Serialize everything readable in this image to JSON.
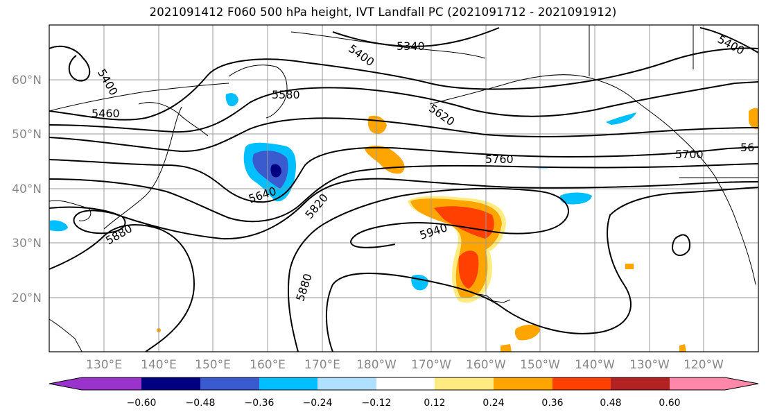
{
  "title": "2021091412 F060 500 hPa height, IVT Landfall PC (2021091712 - 2021091912)",
  "lat_labels": [
    "60°N",
    "50°N",
    "40°N",
    "30°N",
    "20°N"
  ],
  "lon_labels": [
    "130°E",
    "140°E",
    "150°E",
    "160°E",
    "170°E",
    "180°W",
    "170°W",
    "160°W",
    "150°W",
    "140°W",
    "130°W",
    "120°W"
  ],
  "contour_labels": [
    "5400",
    "5460",
    "5340",
    "5400",
    "5580",
    "5620",
    "5760",
    "5700",
    "56",
    "5640",
    "5820",
    "5880",
    "5940",
    "5880",
    "5400"
  ],
  "colorbar": {
    "ticks": [
      "−0.60",
      "−0.48",
      "−0.36",
      "−0.24",
      "−0.12",
      "0.12",
      "0.24",
      "0.36",
      "0.48",
      "0.60"
    ],
    "colors": [
      "#9933cc",
      "#000080",
      "#3a5bcf",
      "#00bfff",
      "#b0e0ff",
      "#ffffff",
      "#ffeb80",
      "#ffa500",
      "#ff4000",
      "#b22222",
      "#ff88aa"
    ]
  },
  "colors": {
    "frame": "#000000",
    "grid": "#999999",
    "contour": "#000000"
  }
}
